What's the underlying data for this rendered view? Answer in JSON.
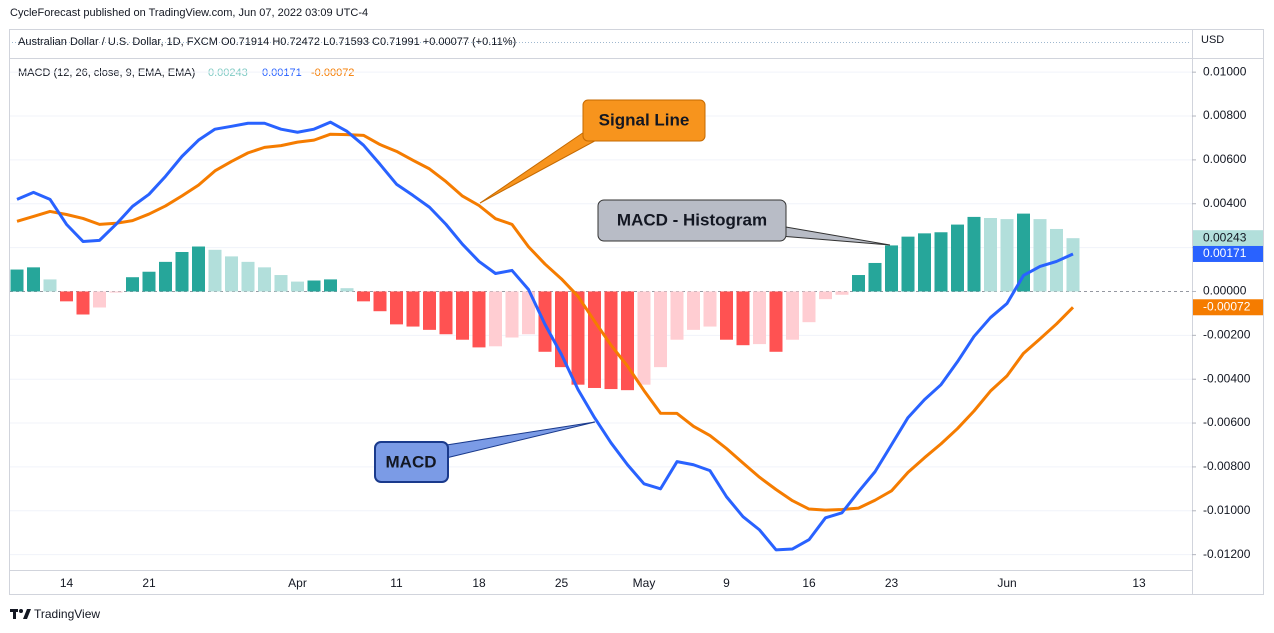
{
  "header": {
    "published": "CycleForecast published on TradingView.com, Jun 07, 2022 03:09 UTC-4",
    "symbol_line": "Australian Dollar / U.S. Dollar, 1D, FXCM  O0.71914 H0.72472 L0.71593 C0.71991 +0.00077 (+0.11%)",
    "currency": "USD"
  },
  "footer": {
    "brand": "TradingView"
  },
  "chart_data": {
    "type": "bar",
    "indicator": "MACD (12, 26, close, 9, EMA, EMA)",
    "categories": [
      null,
      null,
      null,
      "14",
      null,
      null,
      null,
      null,
      "21",
      null,
      null,
      null,
      null,
      null,
      null,
      null,
      null,
      "Apr",
      null,
      null,
      null,
      null,
      null,
      "11",
      null,
      null,
      null,
      null,
      "18",
      null,
      null,
      null,
      null,
      "25",
      null,
      null,
      null,
      null,
      "May",
      null,
      null,
      null,
      null,
      "9",
      null,
      null,
      null,
      null,
      "16",
      null,
      null,
      null,
      null,
      "23",
      null,
      null,
      null,
      null,
      null,
      null,
      "Jun",
      null,
      null,
      null,
      null,
      null,
      null,
      null,
      "13",
      null
    ],
    "values": [
      0.001,
      0.0011,
      0.00055,
      -0.00045,
      -0.00105,
      -0.00073,
      -5e-05,
      0.00065,
      0.0009,
      0.00135,
      0.0018,
      0.00205,
      0.0019,
      0.0016,
      0.00135,
      0.0011,
      0.00075,
      0.00045,
      0.0005,
      0.00055,
      0.00015,
      -0.00045,
      -0.0009,
      -0.0015,
      -0.0016,
      -0.00175,
      -0.00195,
      -0.0022,
      -0.00255,
      -0.0025,
      -0.0021,
      -0.00195,
      -0.00275,
      -0.00345,
      -0.00425,
      -0.0044,
      -0.00445,
      -0.0045,
      -0.00425,
      -0.00345,
      -0.0022,
      -0.00175,
      -0.0016,
      -0.0022,
      -0.00245,
      -0.0024,
      -0.00275,
      -0.0022,
      -0.0014,
      -0.00035,
      -0.00015,
      0.00075,
      0.0013,
      0.0021,
      0.0025,
      0.00265,
      0.0027,
      0.00305,
      0.0034,
      0.00335,
      0.0033,
      0.00355,
      0.0033,
      0.00285,
      0.00243,
      null,
      null,
      null,
      null,
      null
    ],
    "value_labels": [
      null,
      null,
      null,
      null,
      null,
      null,
      null,
      null,
      null,
      null,
      null,
      null,
      null,
      null,
      null,
      null,
      null,
      null,
      null,
      null,
      null,
      null,
      null,
      null,
      null,
      null,
      null,
      null,
      null,
      null,
      null,
      null,
      null,
      null,
      null,
      null,
      null,
      null,
      null,
      null,
      null,
      null,
      null,
      null,
      null,
      null,
      null,
      null,
      null,
      null,
      null,
      null,
      null,
      null,
      null,
      null,
      null,
      null,
      null,
      null,
      null,
      null,
      null,
      null,
      "0.00243",
      null,
      null,
      null,
      null,
      null
    ],
    "histogram_colors": {
      "positive_rising": "#26a69a",
      "positive_falling": "#b2dfdb",
      "negative_falling": "#ff5252",
      "negative_rising": "#ffcdd2"
    },
    "series": [
      {
        "name": "MACD",
        "color": "#2962ff",
        "values": [
          0.0042,
          0.00452,
          0.0042,
          0.00306,
          0.00228,
          0.00233,
          0.00306,
          0.00388,
          0.00443,
          0.00525,
          0.00616,
          0.0069,
          0.0074,
          0.00753,
          0.00767,
          0.00767,
          0.0074,
          0.00726,
          0.0074,
          0.00772,
          0.0073,
          0.00667,
          0.0058,
          0.00489,
          0.00438,
          0.00384,
          0.00306,
          0.00215,
          0.00137,
          0.00082,
          0.00096,
          9e-05,
          -0.0015,
          -0.00288,
          -0.00447,
          -0.00575,
          -0.0069,
          -0.0079,
          -0.00877,
          -0.009,
          -0.00776,
          -0.0079,
          -0.00817,
          -0.00936,
          -0.01027,
          -0.01087,
          -0.01178,
          -0.01174,
          -0.01132,
          -0.01032,
          -0.01009,
          -0.00913,
          -0.00822,
          -0.00699,
          -0.00575,
          -0.00493,
          -0.00425,
          -0.0032,
          -0.00205,
          -0.00119,
          -0.00055,
          0.00073,
          0.00114,
          0.00137,
          0.00171,
          null,
          null,
          null,
          null,
          null
        ],
        "value_labels": [
          null,
          null,
          null,
          null,
          null,
          null,
          null,
          null,
          null,
          null,
          null,
          null,
          null,
          null,
          null,
          null,
          null,
          null,
          null,
          null,
          null,
          null,
          null,
          null,
          null,
          null,
          null,
          null,
          null,
          null,
          null,
          null,
          null,
          null,
          null,
          null,
          null,
          null,
          null,
          null,
          null,
          null,
          null,
          null,
          null,
          null,
          null,
          null,
          null,
          null,
          null,
          null,
          null,
          null,
          null,
          null,
          null,
          null,
          null,
          null,
          null,
          null,
          null,
          null,
          "0.00171",
          null,
          null,
          null,
          null,
          null
        ]
      },
      {
        "name": "Signal Line",
        "color": "#f57c00",
        "values": [
          0.0032,
          0.00342,
          0.00365,
          0.00351,
          0.00333,
          0.00306,
          0.00311,
          0.00323,
          0.00353,
          0.0039,
          0.00436,
          0.00485,
          0.0055,
          0.00593,
          0.00632,
          0.00657,
          0.00665,
          0.00681,
          0.0069,
          0.00717,
          0.00715,
          0.00712,
          0.0067,
          0.00639,
          0.00598,
          0.00559,
          0.00501,
          0.00435,
          0.00392,
          0.00332,
          0.00306,
          0.00204,
          0.00125,
          0.00057,
          -0.00022,
          -0.00135,
          -0.00245,
          -0.0034,
          -0.00452,
          -0.00555,
          -0.00556,
          -0.00615,
          -0.00657,
          -0.00716,
          -0.00782,
          -0.00847,
          -0.00903,
          -0.00954,
          -0.00992,
          -0.00997,
          -0.00994,
          -0.00988,
          -0.00952,
          -0.00909,
          -0.00825,
          -0.00758,
          -0.00695,
          -0.00625,
          -0.00545,
          -0.00454,
          -0.00385,
          -0.00282,
          -0.00216,
          -0.00148,
          -0.00072,
          null,
          null,
          null,
          null,
          null
        ],
        "value_labels": [
          null,
          null,
          null,
          null,
          null,
          null,
          null,
          null,
          null,
          null,
          null,
          null,
          null,
          null,
          null,
          null,
          null,
          null,
          null,
          null,
          null,
          null,
          null,
          null,
          null,
          null,
          null,
          null,
          null,
          null,
          null,
          null,
          null,
          null,
          null,
          null,
          null,
          null,
          null,
          null,
          null,
          null,
          null,
          null,
          null,
          null,
          null,
          null,
          null,
          null,
          null,
          null,
          null,
          null,
          null,
          null,
          null,
          null,
          null,
          null,
          null,
          null,
          null,
          null,
          "-0.00072",
          null,
          null,
          null,
          null,
          null
        ]
      }
    ],
    "ylim": [
      -0.0127,
      0.0106
    ],
    "yticks": [
      {
        "value": 0.01,
        "label": "0.01000"
      },
      {
        "value": 0.008,
        "label": "0.00800"
      },
      {
        "value": 0.006,
        "label": "0.00600"
      },
      {
        "value": 0.004,
        "label": "0.00400"
      },
      {
        "value": 0.002,
        "label": "0.00200"
      },
      {
        "value": 0,
        "label": "0.00000"
      },
      {
        "value": -0.002,
        "label": "-0.00200"
      },
      {
        "value": -0.004,
        "label": "-0.00400"
      },
      {
        "value": -0.006,
        "label": "-0.00600"
      },
      {
        "value": -0.008,
        "label": "-0.00800"
      },
      {
        "value": -0.01,
        "label": "-0.01000"
      },
      {
        "value": -0.012,
        "label": "-0.01200"
      }
    ],
    "grid": true,
    "annotations": [
      "Signal Line",
      "MACD - Histogram",
      "MACD"
    ]
  }
}
